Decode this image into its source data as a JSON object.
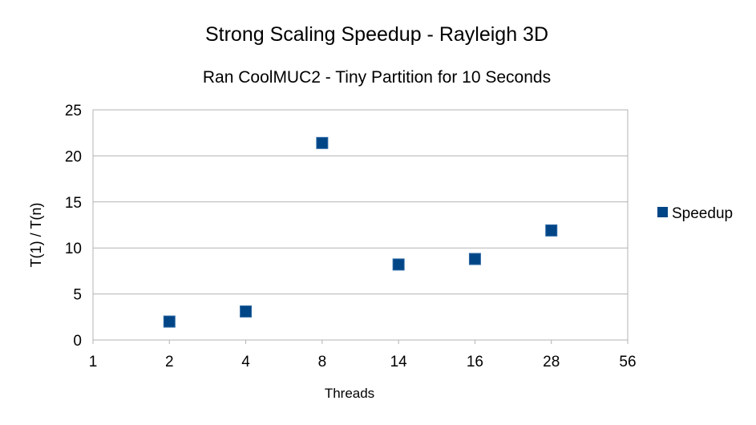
{
  "chart_data": {
    "type": "scatter",
    "title": "Strong Scaling Speedup - Rayleigh 3D",
    "subtitle": "Ran CoolMUC2 - Tiny Partition for 10 Seconds",
    "xlabel": "Threads",
    "ylabel": "T(1) / T(n)",
    "x_ticks": [
      "1",
      "2",
      "4",
      "8",
      "14",
      "16",
      "28",
      "56"
    ],
    "y_ticks": [
      0,
      5,
      10,
      15,
      20,
      25
    ],
    "ylim": [
      0,
      25
    ],
    "grid": "horizontal",
    "legend_position": "right",
    "series": [
      {
        "name": "Speedup",
        "color": "#004586",
        "marker": "square",
        "points": [
          {
            "x": "2",
            "y": 2.0
          },
          {
            "x": "4",
            "y": 3.1
          },
          {
            "x": "8",
            "y": 21.4
          },
          {
            "x": "14",
            "y": 8.2
          },
          {
            "x": "16",
            "y": 8.8
          },
          {
            "x": "28",
            "y": 11.9
          }
        ]
      }
    ]
  }
}
